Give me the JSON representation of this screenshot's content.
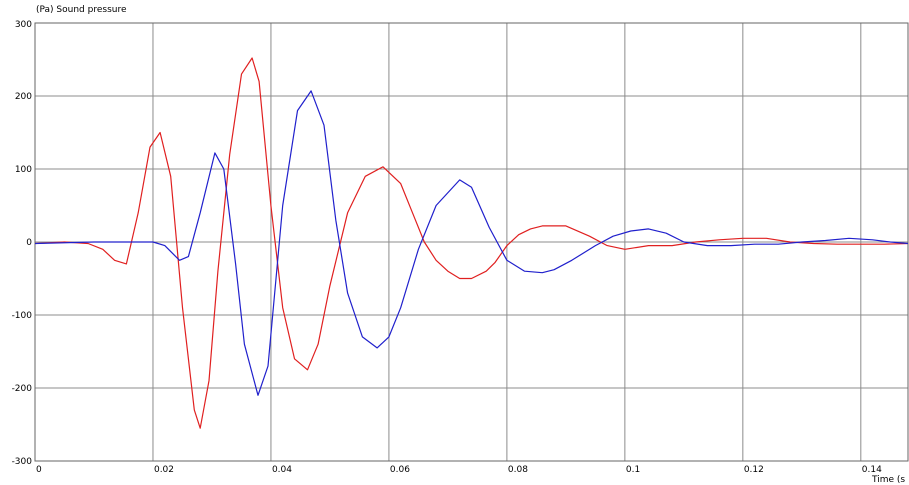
{
  "chart_data": {
    "type": "line",
    "ylabel": "(Pa)  Sound pressure",
    "xlabel": "Time  (s",
    "xlim": [
      0,
      0.148
    ],
    "ylim": [
      -300,
      300
    ],
    "grid": true,
    "x_ticks": [
      {
        "value": 0,
        "label": "0"
      },
      {
        "value": 0.02,
        "label": "0.02"
      },
      {
        "value": 0.04,
        "label": "0.04"
      },
      {
        "value": 0.06,
        "label": "0.06"
      },
      {
        "value": 0.08,
        "label": "0.08"
      },
      {
        "value": 0.1,
        "label": "0.1"
      },
      {
        "value": 0.12,
        "label": "0.12"
      },
      {
        "value": 0.14,
        "label": "0.14"
      }
    ],
    "y_ticks": [
      {
        "value": 300,
        "label": "300"
      },
      {
        "value": 200,
        "label": "200"
      },
      {
        "value": 100,
        "label": "100"
      },
      {
        "value": 0,
        "label": "0"
      },
      {
        "value": -100,
        "label": "-100"
      },
      {
        "value": -200,
        "label": "-200"
      },
      {
        "value": -300,
        "label": "-300"
      }
    ],
    "series": [
      {
        "color": "#e02020",
        "x": [
          0,
          0.005,
          0.009,
          0.0115,
          0.0135,
          0.0155,
          0.0175,
          0.0195,
          0.0212,
          0.023,
          0.025,
          0.027,
          0.028,
          0.0295,
          0.031,
          0.033,
          0.035,
          0.0368,
          0.038,
          0.04,
          0.042,
          0.044,
          0.0462,
          0.048,
          0.05,
          0.053,
          0.056,
          0.059,
          0.062,
          0.064,
          0.066,
          0.068,
          0.07,
          0.072,
          0.074,
          0.0765,
          0.078,
          0.08,
          0.082,
          0.084,
          0.086,
          0.09,
          0.094,
          0.097,
          0.1,
          0.104,
          0.108,
          0.112,
          0.116,
          0.12,
          0.124,
          0.128,
          0.132,
          0.136,
          0.14,
          0.144,
          0.148
        ],
        "y": [
          -2,
          0,
          -2,
          -10,
          -25,
          -30,
          40,
          130,
          150,
          90,
          -90,
          -230,
          -255,
          -190,
          -40,
          120,
          230,
          252,
          220,
          50,
          -90,
          -160,
          -175,
          -140,
          -60,
          40,
          90,
          103,
          80,
          40,
          0,
          -25,
          -40,
          -50,
          -50,
          -40,
          -28,
          -5,
          10,
          18,
          22,
          22,
          8,
          -5,
          -10,
          -5,
          -5,
          0,
          3,
          5,
          5,
          0,
          -2,
          -3,
          -3,
          -3,
          -2
        ]
      },
      {
        "color": "#2020cc",
        "x": [
          0,
          0.01,
          0.02,
          0.022,
          0.0245,
          0.026,
          0.028,
          0.0305,
          0.032,
          0.034,
          0.0355,
          0.0378,
          0.0395,
          0.042,
          0.0445,
          0.0468,
          0.049,
          0.051,
          0.053,
          0.0555,
          0.058,
          0.06,
          0.062,
          0.065,
          0.068,
          0.072,
          0.074,
          0.077,
          0.08,
          0.083,
          0.086,
          0.088,
          0.091,
          0.095,
          0.098,
          0.101,
          0.104,
          0.107,
          0.11,
          0.114,
          0.118,
          0.122,
          0.126,
          0.13,
          0.134,
          0.138,
          0.142,
          0.145,
          0.148
        ],
        "y": [
          -2,
          0,
          0,
          -5,
          -25,
          -20,
          40,
          122,
          100,
          -30,
          -140,
          -210,
          -170,
          50,
          180,
          207,
          160,
          30,
          -70,
          -130,
          -145,
          -130,
          -90,
          -10,
          50,
          85,
          75,
          20,
          -25,
          -40,
          -42,
          -38,
          -25,
          -5,
          8,
          15,
          18,
          12,
          0,
          -5,
          -5,
          -3,
          -3,
          0,
          2,
          5,
          3,
          0,
          -2
        ]
      }
    ]
  }
}
